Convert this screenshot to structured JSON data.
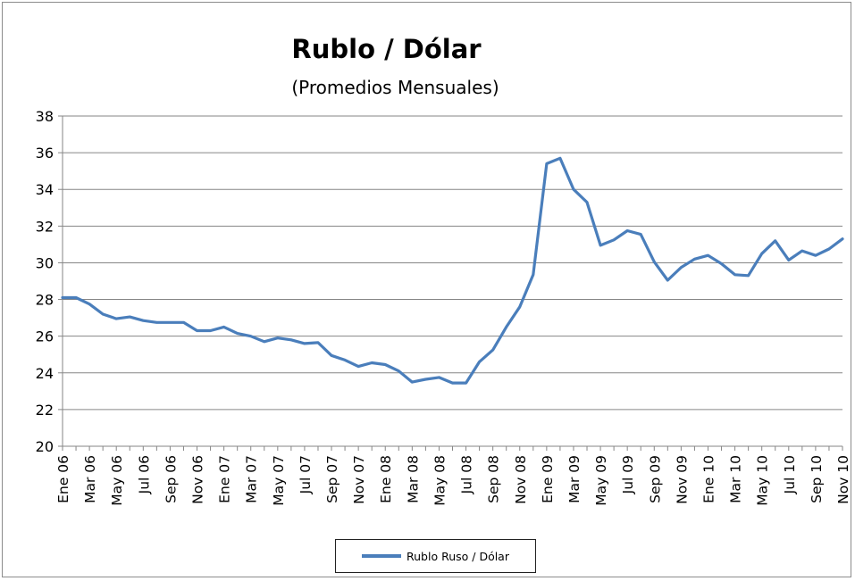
{
  "chart_data": {
    "type": "line",
    "title": "Rublo / Dólar",
    "subtitle": "(Promedios Mensuales)",
    "xlabel": "",
    "ylabel": "",
    "ylim": [
      20,
      38
    ],
    "yticks": [
      20,
      22,
      24,
      26,
      28,
      30,
      32,
      34,
      36,
      38
    ],
    "grid": "horizontal",
    "legend_position": "bottom",
    "line_color": "#4a7ebb",
    "x_labels": [
      "Ene 06",
      "Mar 06",
      "May 06",
      "Jul 06",
      "Sep 06",
      "Nov 06",
      "Ene 07",
      "Mar 07",
      "May 07",
      "Jul 07",
      "Sep 07",
      "Nov 07",
      "Ene 08",
      "Mar 08",
      "May 08",
      "Jul 08",
      "Sep 08",
      "Nov 08",
      "Ene 09",
      "Mar 09",
      "May 09",
      "Jul 09",
      "Sep 09",
      "Nov 09",
      "Ene 10",
      "Mar 10",
      "May 10",
      "Jul 10",
      "Sep 10",
      "Nov 10"
    ],
    "series": [
      {
        "name": "Rublo Ruso / Dólar",
        "values": [
          28.1,
          28.1,
          27.75,
          27.2,
          26.95,
          27.05,
          26.85,
          26.75,
          26.75,
          26.75,
          26.3,
          26.3,
          26.5,
          26.15,
          26.0,
          25.7,
          25.9,
          25.8,
          25.6,
          25.65,
          24.95,
          24.7,
          24.35,
          24.55,
          24.45,
          24.1,
          23.5,
          23.65,
          23.75,
          23.45,
          23.45,
          24.6,
          25.25,
          26.5,
          27.6,
          29.35,
          35.4,
          35.7,
          34.0,
          33.3,
          30.95,
          31.25,
          31.75,
          31.55,
          30.05,
          29.05,
          29.75,
          30.2,
          30.4,
          29.95,
          29.35,
          29.3,
          30.5,
          31.2,
          30.15,
          30.65,
          30.4,
          30.75,
          31.3
        ]
      }
    ]
  }
}
